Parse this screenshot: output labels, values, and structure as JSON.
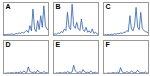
{
  "chart_data": [
    {
      "type": "line",
      "title": "A",
      "color": "#2f5fa8",
      "tick_labels": false,
      "xlim": [
        0,
        29
      ],
      "ylim": [
        0,
        100
      ],
      "x": [
        0,
        1,
        2,
        3,
        4,
        5,
        6,
        7,
        8,
        9,
        10,
        11,
        12,
        13,
        14,
        15,
        16,
        17,
        18,
        19,
        20,
        21,
        22,
        23,
        24,
        25,
        26,
        27,
        28,
        29
      ],
      "values": [
        2,
        3,
        2,
        4,
        3,
        5,
        4,
        3,
        6,
        5,
        8,
        6,
        10,
        7,
        12,
        15,
        9,
        30,
        14,
        80,
        20,
        12,
        45,
        18,
        60,
        25,
        90,
        30,
        20,
        15
      ]
    },
    {
      "type": "line",
      "title": "B",
      "color": "#2f5fa8",
      "tick_labels": false,
      "xlim": [
        0,
        29
      ],
      "ylim": [
        0,
        100
      ],
      "x": [
        0,
        1,
        2,
        3,
        4,
        5,
        6,
        7,
        8,
        9,
        10,
        11,
        12,
        13,
        14,
        15,
        16,
        17,
        18,
        19,
        20,
        21,
        22,
        23,
        24,
        25,
        26,
        27,
        28,
        29
      ],
      "values": [
        3,
        5,
        4,
        8,
        6,
        12,
        9,
        20,
        15,
        70,
        25,
        18,
        95,
        30,
        22,
        40,
        20,
        15,
        50,
        18,
        12,
        25,
        10,
        14,
        8,
        20,
        6,
        10,
        5,
        4
      ]
    },
    {
      "type": "line",
      "title": "C",
      "color": "#2f5fa8",
      "tick_labels": false,
      "xlim": [
        0,
        29
      ],
      "ylim": [
        0,
        100
      ],
      "x": [
        0,
        1,
        2,
        3,
        4,
        5,
        6,
        7,
        8,
        9,
        10,
        11,
        12,
        13,
        14,
        15,
        16,
        17,
        18,
        19,
        20,
        21,
        22,
        23,
        24,
        25,
        26,
        27,
        28,
        29
      ],
      "values": [
        1,
        2,
        2,
        3,
        2,
        4,
        3,
        5,
        4,
        6,
        5,
        8,
        6,
        10,
        9,
        15,
        12,
        60,
        20,
        14,
        30,
        85,
        25,
        18,
        70,
        22,
        15,
        12,
        10,
        8
      ]
    },
    {
      "type": "line",
      "title": "D",
      "color": "#2f5fa8",
      "tick_labels": false,
      "xlim": [
        0,
        29
      ],
      "ylim": [
        0,
        100
      ],
      "x": [
        0,
        1,
        2,
        3,
        4,
        5,
        6,
        7,
        8,
        9,
        10,
        11,
        12,
        13,
        14,
        15,
        16,
        17,
        18,
        19,
        20,
        21,
        22,
        23,
        24,
        25,
        26,
        27,
        28,
        29
      ],
      "values": [
        0,
        1,
        1,
        2,
        1,
        3,
        2,
        1,
        4,
        2,
        3,
        5,
        2,
        8,
        4,
        3,
        20,
        6,
        4,
        3,
        5,
        2,
        10,
        4,
        3,
        2,
        6,
        3,
        2,
        1
      ]
    },
    {
      "type": "line",
      "title": "E",
      "color": "#2f5fa8",
      "tick_labels": false,
      "xlim": [
        0,
        29
      ],
      "ylim": [
        0,
        100
      ],
      "x": [
        0,
        1,
        2,
        3,
        4,
        5,
        6,
        7,
        8,
        9,
        10,
        11,
        12,
        13,
        14,
        15,
        16,
        17,
        18,
        19,
        20,
        21,
        22,
        23,
        24,
        25,
        26,
        27,
        28,
        29
      ],
      "values": [
        1,
        0,
        2,
        1,
        3,
        2,
        1,
        4,
        2,
        6,
        3,
        2,
        5,
        25,
        8,
        4,
        3,
        6,
        2,
        12,
        5,
        3,
        4,
        2,
        8,
        3,
        2,
        4,
        1,
        2
      ]
    },
    {
      "type": "line",
      "title": "F",
      "color": "#2f5fa8",
      "tick_labels": false,
      "xlim": [
        0,
        29
      ],
      "ylim": [
        0,
        100
      ],
      "x": [
        0,
        1,
        2,
        3,
        4,
        5,
        6,
        7,
        8,
        9,
        10,
        11,
        12,
        13,
        14,
        15,
        16,
        17,
        18,
        19,
        20,
        21,
        22,
        23,
        24,
        25,
        26,
        27,
        28,
        29
      ],
      "values": [
        0,
        1,
        0,
        2,
        1,
        1,
        3,
        2,
        1,
        4,
        2,
        18,
        5,
        3,
        2,
        6,
        3,
        2,
        8,
        4,
        2,
        3,
        10,
        4,
        2,
        3,
        2,
        5,
        1,
        2
      ]
    }
  ]
}
